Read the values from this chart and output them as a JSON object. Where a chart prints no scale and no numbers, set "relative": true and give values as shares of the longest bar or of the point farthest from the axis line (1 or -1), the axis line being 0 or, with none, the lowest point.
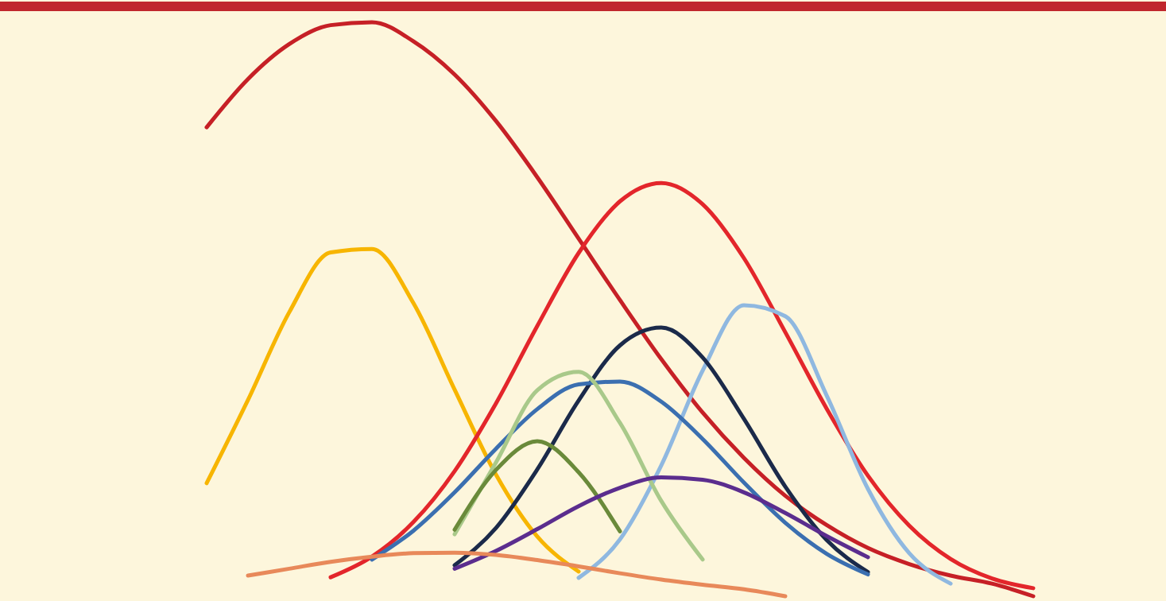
{
  "chart_data": {
    "type": "line",
    "relative": true,
    "categories": [
      null,
      null,
      null,
      null,
      null,
      null,
      null,
      null,
      null,
      null,
      null,
      null,
      null,
      null,
      null,
      null,
      null,
      null,
      null,
      null,
      null
    ],
    "series": [
      {
        "color": "#c62026",
        "values": [
          0.817,
          0.901,
          0.962,
          0.995,
          1,
          0.967,
          0.909,
          0.828,
          0.73,
          0.623,
          0.516,
          0.413,
          0.32,
          0.241,
          0.175,
          0.124,
          0.084,
          0.056,
          0.036,
          0.022,
          0
        ]
      },
      {
        "color": "#f7b500",
        "values": [
          0.197,
          0.342,
          0.495,
          0.599,
          0.605,
          0.511,
          0.36,
          0.212,
          0.104,
          0.043,
          null,
          null,
          null,
          null,
          null,
          null,
          null,
          null,
          null,
          null,
          null
        ]
      },
      {
        "color": "#e3262b",
        "values": [
          null,
          null,
          null,
          0.033,
          0.069,
          0.129,
          0.218,
          0.336,
          0.471,
          0.598,
          0.688,
          0.72,
          0.683,
          0.589,
          0.46,
          0.327,
          0.21,
          0.123,
          0.065,
          0.031,
          0.014
        ]
      },
      {
        "color": "#8fb8e0",
        "values": [
          null,
          null,
          null,
          null,
          null,
          null,
          null,
          null,
          null,
          0.032,
          0.099,
          0.228,
          0.393,
          0.507,
          0.488,
          0.35,
          0.187,
          0.075,
          0.022,
          null,
          null
        ]
      },
      {
        "color": "#1b2a4a",
        "values": [
          null,
          null,
          null,
          null,
          null,
          null,
          0.054,
          0.119,
          0.221,
          0.341,
          0.437,
          0.468,
          0.416,
          0.309,
          0.191,
          0.098,
          0.042,
          null,
          null,
          null,
          null
        ]
      },
      {
        "color": "#3b6fb0",
        "values": [
          null,
          null,
          null,
          null,
          0.064,
          0.114,
          0.181,
          0.257,
          0.326,
          0.369,
          0.374,
          0.339,
          0.274,
          0.198,
          0.128,
          0.074,
          0.038,
          null,
          null,
          null,
          null
        ]
      },
      {
        "color": "#a9c98a",
        "values": [
          null,
          null,
          null,
          null,
          null,
          null,
          0.108,
          0.233,
          0.359,
          0.391,
          0.302,
          0.166,
          0.064,
          null,
          null,
          null,
          null,
          null,
          null,
          null,
          null
        ]
      },
      {
        "color": "#6a8a3a",
        "values": [
          null,
          null,
          null,
          null,
          null,
          null,
          0.116,
          0.22,
          0.27,
          0.216,
          0.113,
          null,
          null,
          null,
          null,
          null,
          null,
          null,
          null,
          null,
          null
        ]
      },
      {
        "color": "#5b2d8e",
        "values": [
          null,
          null,
          null,
          null,
          null,
          null,
          0.048,
          0.079,
          0.117,
          0.157,
          0.189,
          0.207,
          0.203,
          0.181,
          0.145,
          0.105,
          0.068,
          null,
          null,
          null,
          null
        ]
      },
      {
        "color": "#e8895a",
        "values": [
          null,
          0.036,
          0.048,
          0.06,
          0.069,
          0.075,
          0.076,
          0.072,
          0.063,
          0.052,
          0.04,
          0.029,
          0.02,
          0.012,
          0,
          null,
          null,
          null,
          null,
          null,
          null
        ]
      }
    ]
  }
}
